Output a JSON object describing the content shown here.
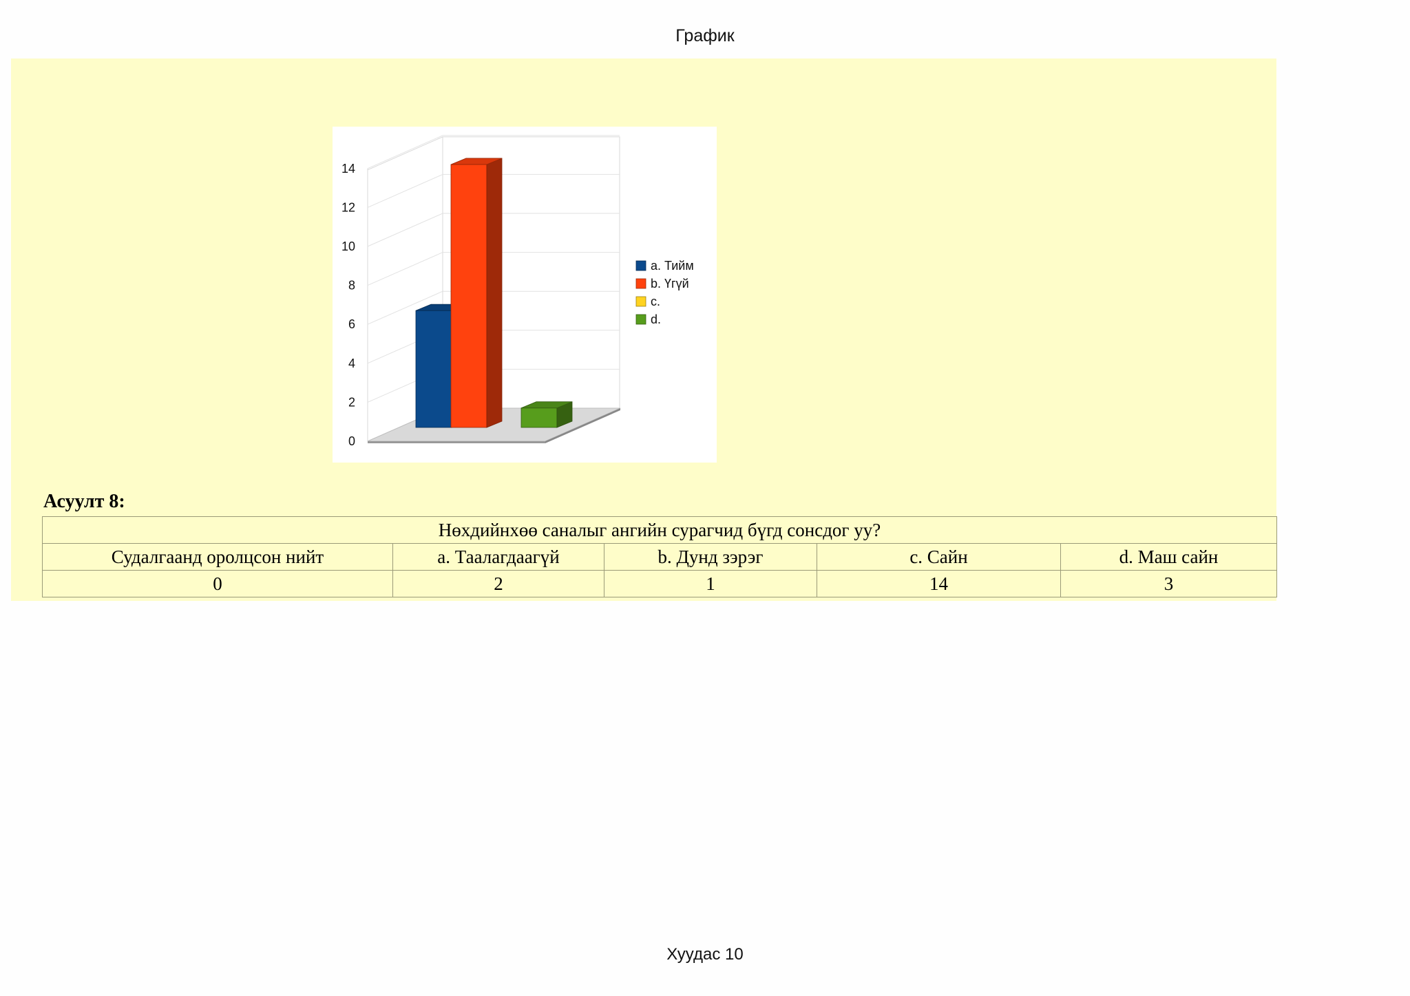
{
  "header": {
    "title": "График"
  },
  "footer": {
    "page": "Хуудас 10"
  },
  "chart_data": {
    "type": "bar",
    "categories": [
      "a. Тийм",
      "b. Үгүй",
      "c.",
      "d."
    ],
    "values": [
      6,
      13.5,
      0,
      1
    ],
    "yticks": [
      "0",
      "2",
      "4",
      "6",
      "8",
      "10",
      "12",
      "14"
    ],
    "ylim": [
      0,
      14
    ],
    "legend": [
      "a. Тийм",
      "b. Үгүй",
      "c.",
      "d."
    ],
    "legend_position": "right",
    "colors": [
      "#0b4a8c",
      "#ff420e",
      "#ffd320",
      "#579d1c"
    ],
    "grid": true,
    "style": "3d"
  },
  "question": {
    "label": "Асуулт 8:",
    "title": "Нөхдийнхөө саналыг ангийн сурагчид бүгд сонсдог уу?",
    "headers": [
      "Судалгаанд оролцсон нийт",
      "a. Таалагдаагүй",
      "b. Дунд зэрэг",
      "c. Сайн",
      "d. Маш сайн"
    ],
    "values": [
      "0",
      "2",
      "1",
      "14",
      "3"
    ]
  }
}
